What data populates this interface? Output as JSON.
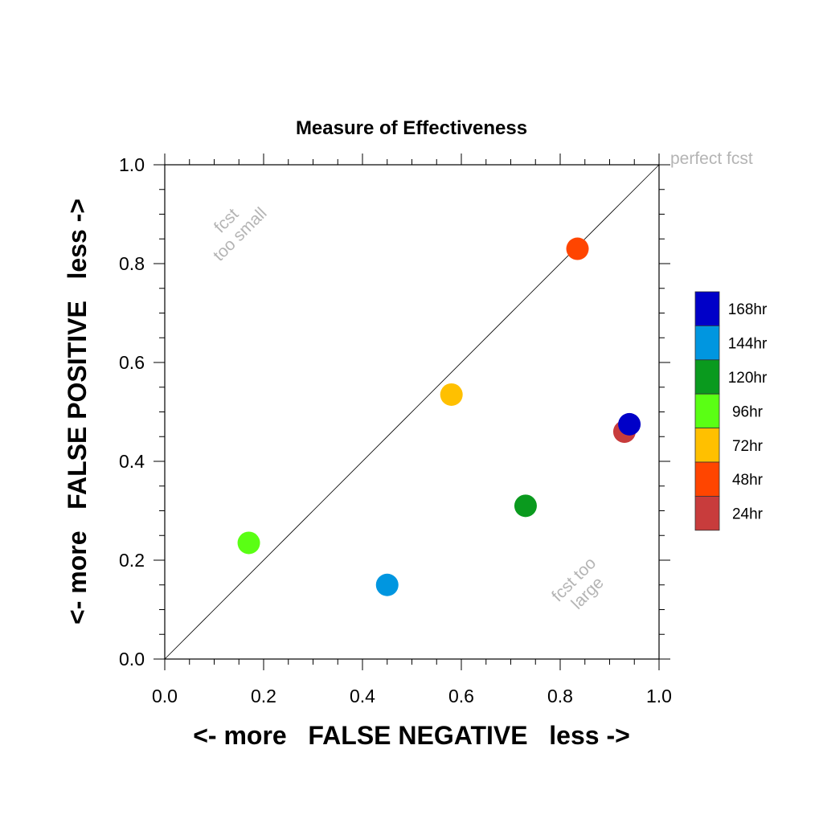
{
  "chart_data": {
    "type": "scatter",
    "title": "Measure of Effectiveness",
    "xlabel": "<- more   FALSE NEGATIVE   less ->",
    "ylabel": "<- more   FALSE POSITIVE   less ->",
    "xlim": [
      0.0,
      1.0
    ],
    "ylim": [
      0.0,
      1.0
    ],
    "x_ticks": [
      "0.0",
      "0.2",
      "0.4",
      "0.6",
      "0.8",
      "1.0"
    ],
    "y_ticks": [
      "0.0",
      "0.2",
      "0.4",
      "0.6",
      "0.8",
      "1.0"
    ],
    "grid": false,
    "diagonal_line": true,
    "legend_placement": "right",
    "series": [
      {
        "name": "24hr",
        "color": "#c83c3c",
        "x": [
          0.93
        ],
        "y": [
          0.46
        ]
      },
      {
        "name": "48hr",
        "color": "#ff4500",
        "x": [
          0.835
        ],
        "y": [
          0.83
        ]
      },
      {
        "name": "72hr",
        "color": "#ffc000",
        "x": [
          0.58
        ],
        "y": [
          0.535
        ]
      },
      {
        "name": "96hr",
        "color": "#5aff14",
        "x": [
          0.17
        ],
        "y": [
          0.235
        ]
      },
      {
        "name": "120hr",
        "color": "#0a9a1e",
        "x": [
          0.73
        ],
        "y": [
          0.31
        ]
      },
      {
        "name": "144hr",
        "color": "#0096e0",
        "x": [
          0.45
        ],
        "y": [
          0.15
        ]
      },
      {
        "name": "168hr",
        "color": "#0000c8",
        "x": [
          0.94
        ],
        "y": [
          0.475
        ]
      }
    ],
    "annotations": {
      "perfect": "perfect fcst",
      "too_small_1": "fcst",
      "too_small_2": "too small",
      "too_large_1": "fcst too",
      "too_large_2": "large"
    },
    "legend_order": [
      "168hr",
      "144hr",
      "120hr",
      "96hr",
      "72hr",
      "48hr",
      "24hr"
    ]
  }
}
